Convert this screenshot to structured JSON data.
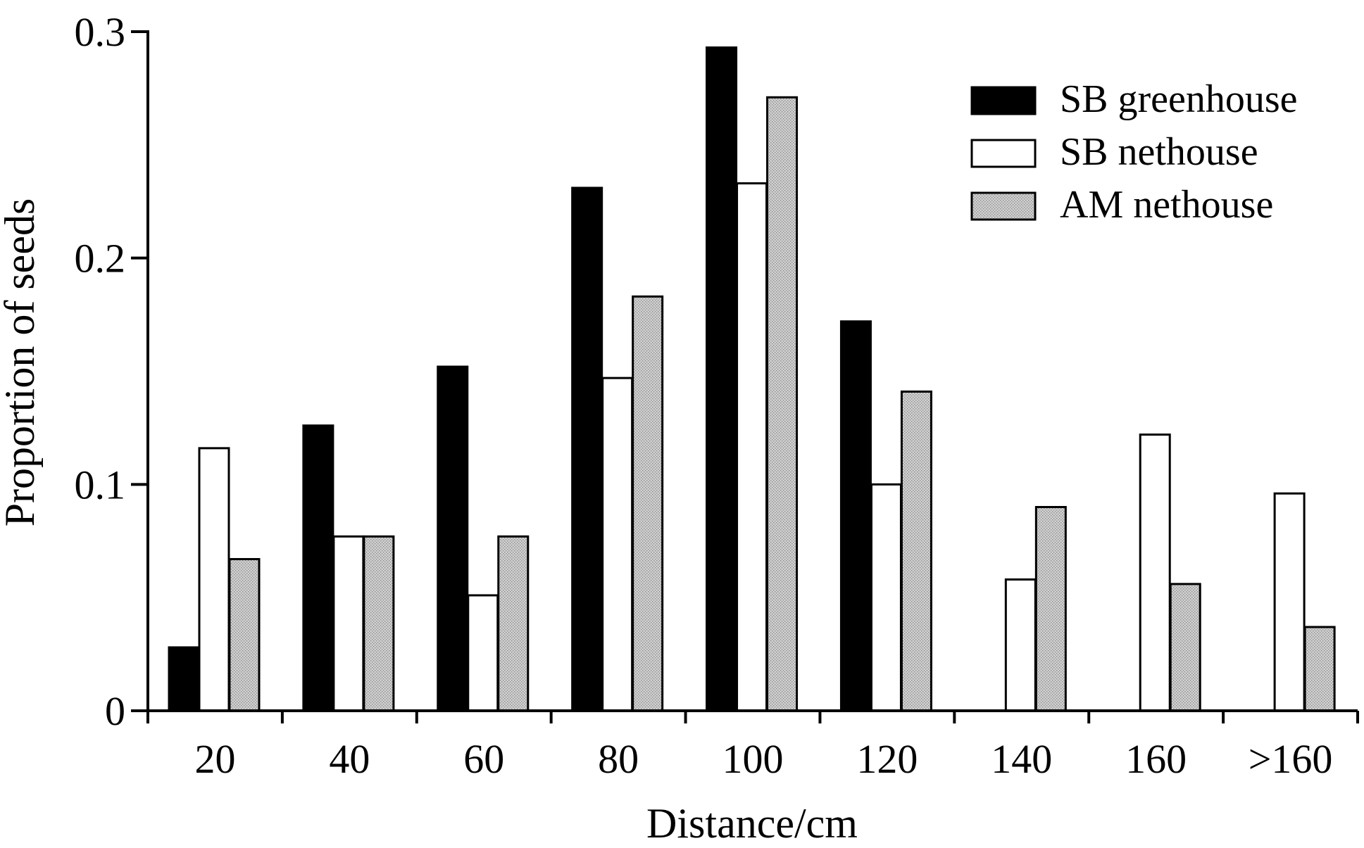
{
  "chart_data": {
    "type": "bar",
    "title": "",
    "xlabel": "Distance/cm",
    "ylabel": "Proportion of seeds",
    "ylim": [
      0,
      0.3
    ],
    "yticks": [
      "0",
      "0.1",
      "0.2",
      "0.3"
    ],
    "grid": false,
    "legend_position": "top-right",
    "categories": [
      "20",
      "40",
      "60",
      "80",
      "100",
      "120",
      "140",
      "160",
      ">160"
    ],
    "series": [
      {
        "name": "SB greenhouse",
        "color": "#000000",
        "style": "solid",
        "values": [
          0.028,
          0.126,
          0.152,
          0.231,
          0.293,
          0.172,
          0,
          0,
          0
        ]
      },
      {
        "name": "SB nethouse",
        "color": "#ffffff",
        "style": "outline",
        "values": [
          0.116,
          0.077,
          0.051,
          0.147,
          0.233,
          0.1,
          0.058,
          0.122,
          0.096
        ]
      },
      {
        "name": "AM nethouse",
        "color": "#c8c8c8",
        "style": "stippled",
        "values": [
          0.067,
          0.077,
          0.077,
          0.183,
          0.271,
          0.141,
          0.09,
          0.056,
          0.037
        ]
      }
    ]
  }
}
